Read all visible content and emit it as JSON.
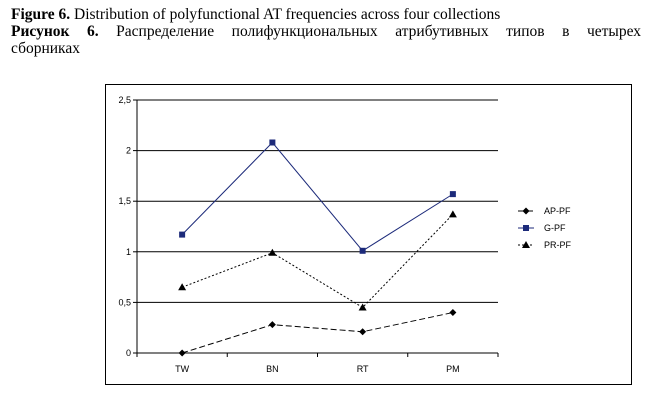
{
  "caption": {
    "figure_label": "Figure 6.",
    "figure_text": " Distribution of polyfunctional AT frequencies across four collections",
    "ru_label": "Рисунок 6.",
    "ru_text_line": "Распределение полифункциональных атрибутивных типов в четырех",
    "ru_text_cont": "сборниках"
  },
  "chart_data": {
    "type": "line",
    "categories": [
      "TW",
      "BN",
      "RT",
      "PM"
    ],
    "series": [
      {
        "name": "AP-PF",
        "values": [
          0.0,
          0.28,
          0.21,
          0.4
        ],
        "color": "#000000",
        "marker": "diamond",
        "dash": "6,3"
      },
      {
        "name": "G-PF",
        "values": [
          1.17,
          2.08,
          1.01,
          1.57
        ],
        "color": "#1c2a7a",
        "marker": "square",
        "dash": ""
      },
      {
        "name": "PR-PF",
        "values": [
          0.65,
          0.99,
          0.45,
          1.37
        ],
        "color": "#000000",
        "marker": "triangle",
        "dash": "2,2"
      }
    ],
    "yticks": [
      "0",
      "0,5",
      "1",
      "1,5",
      "2",
      "2,5"
    ],
    "ylim": [
      0,
      2.5
    ],
    "grid": true,
    "legend": "right"
  }
}
